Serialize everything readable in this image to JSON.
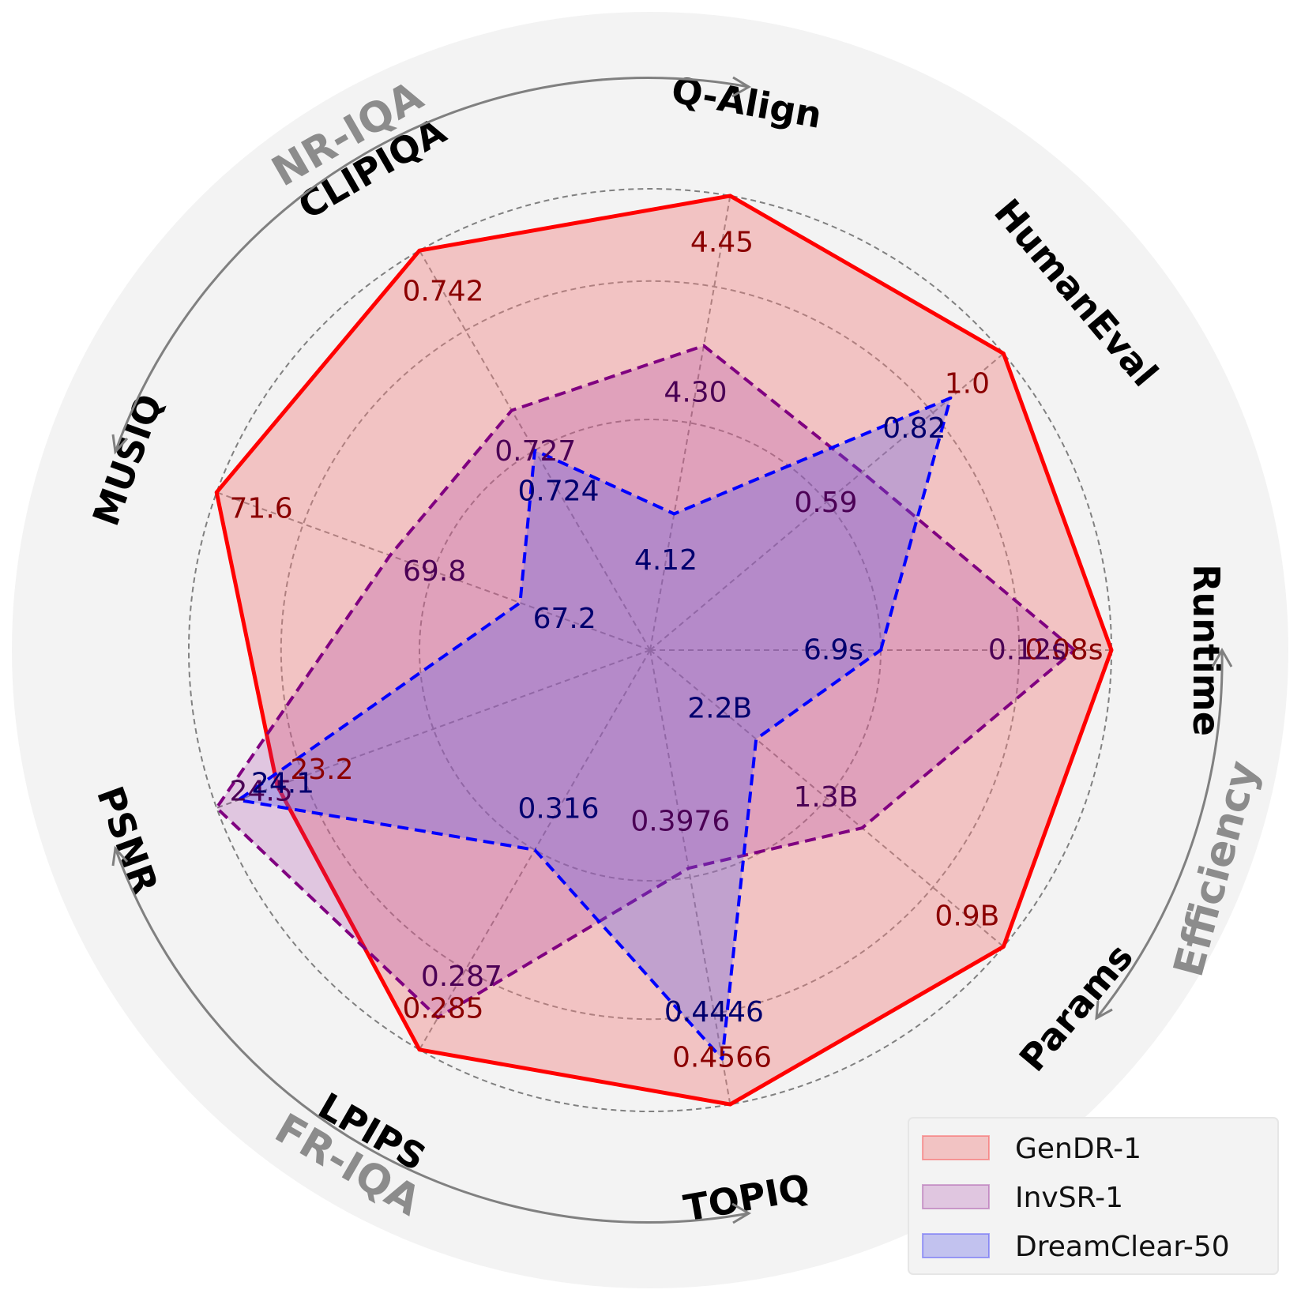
{
  "chart_data": {
    "type": "radar",
    "axes": [
      "Runtime",
      "HumanEval",
      "Q-Align",
      "CLIPIQA",
      "MUSIQ",
      "PSNR",
      "LPIPS",
      "TOPIQ",
      "Params"
    ],
    "groups": [
      {
        "label": "NR-IQA",
        "axes": [
          "Q-Align",
          "CLIPIQA",
          "MUSIQ"
        ]
      },
      {
        "label": "FR-IQA",
        "axes": [
          "PSNR",
          "LPIPS",
          "TOPIQ"
        ]
      },
      {
        "label": "Efficiency",
        "axes": [
          "Runtime",
          "Params"
        ]
      }
    ],
    "grid": true,
    "legend_position": "bottom-right",
    "series": [
      {
        "name": "GenDR-1",
        "color": "#ff0000",
        "line_style": "solid",
        "labels": [
          "0.08s",
          "1.0",
          "4.45",
          "0.742",
          "71.6",
          "23.2",
          "0.285",
          "0.4566",
          "0.9B"
        ],
        "normalized": [
          1.0,
          1.0,
          1.0,
          1.0,
          1.0,
          0.86,
          1.0,
          1.0,
          1.0
        ]
      },
      {
        "name": "InvSR-1",
        "color": "#800080",
        "line_style": "dashed",
        "labels": [
          "0.12s",
          "0.59",
          "4.30",
          "0.727",
          "69.8",
          "24.5",
          "0.287",
          "0.3976",
          "1.3B"
        ],
        "normalized": [
          0.92,
          0.6,
          0.67,
          0.6,
          0.6,
          1.0,
          0.92,
          0.48,
          0.6
        ]
      },
      {
        "name": "DreamClear-50",
        "color": "#0000ff",
        "line_style": "dashed",
        "labels": [
          "6.9s",
          "0.82",
          "4.12",
          "0.724",
          "67.2",
          "24.1",
          "0.316",
          "0.4446",
          "2.2B"
        ],
        "normalized": [
          0.5,
          0.85,
          0.3,
          0.5,
          0.3,
          0.95,
          0.5,
          0.9,
          0.3
        ]
      }
    ]
  }
}
